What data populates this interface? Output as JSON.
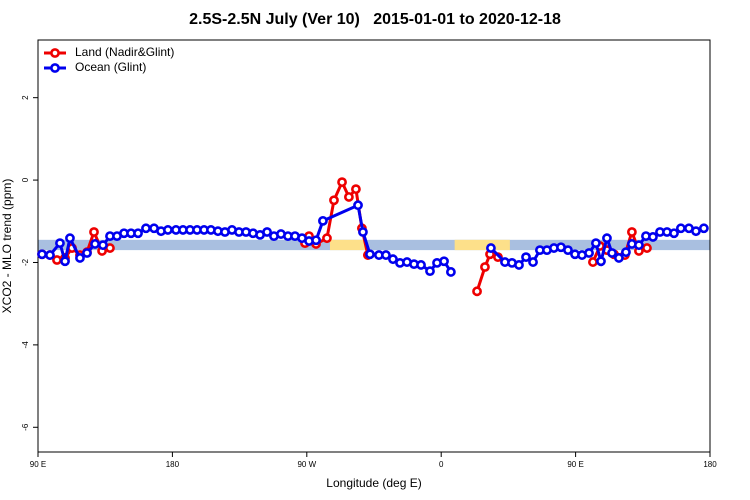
{
  "chart_data": {
    "type": "line",
    "title": "2.5S-2.5N July (Ver 10)   2015-01-01 to 2020-12-18",
    "x_label": "Longitude (deg E)",
    "y_label": "XCO2 - MLO trend (ppm)",
    "xlim": [
      90,
      540
    ],
    "ylim": [
      -6.6,
      3.4
    ],
    "xticks": [
      {
        "value": 90,
        "label": "90 E"
      },
      180,
      {
        "value": 270,
        "label": "90 W"
      },
      {
        "value": 360,
        "label": "0"
      },
      {
        "value": 450,
        "label": "90 E"
      },
      {
        "value": 540,
        "label": "180"
      }
    ],
    "yticks": [
      2,
      0,
      -2,
      -4,
      -6
    ],
    "legend": "top-left",
    "bands": [
      {
        "color": "#a9bfe0",
        "x": [
          90,
          540
        ],
        "y": [
          -1.7,
          -1.45
        ]
      },
      {
        "color": "#fde08a",
        "x": [
          285.5,
          309
        ],
        "y": [
          -1.7,
          -1.45
        ]
      },
      {
        "color": "#fde08a",
        "x": [
          369,
          406
        ],
        "y": [
          -1.7,
          -1.45
        ]
      }
    ],
    "series": [
      {
        "name": "Land (Nadir&Glint)",
        "color": "#ee0000",
        "x": [
          92.7,
          98.0,
          102.7,
          108.1,
          112.8,
          118.1,
          122.8,
          127.5,
          132.9,
          138.2,
          200,
          268.8,
          271.5,
          276.2,
          283.5,
          288.2,
          293.6,
          298.2,
          302.9,
          306.9,
          310.9,
          380,
          384.0,
          389.3,
          392.7,
          398.0,
          430,
          461.6,
          466.3,
          471.0,
          475.7,
          483.0,
          487.7,
          492.4,
          497.8
        ],
        "values": [
          -1.8,
          -1.82,
          -1.94,
          -1.89,
          -1.65,
          -1.82,
          -1.75,
          -1.26,
          -1.72,
          -1.65,
          null,
          -1.53,
          -1.36,
          -1.55,
          -1.41,
          -0.49,
          -0.05,
          -0.41,
          -0.22,
          -1.17,
          -1.82,
          null,
          -2.7,
          -2.11,
          -1.8,
          -1.87,
          null,
          -1.99,
          -1.6,
          -1.7,
          -1.8,
          -1.82,
          -1.26,
          -1.72,
          -1.65
        ]
      },
      {
        "name": "Ocean (Glint)",
        "color": "#0000ee",
        "x": [
          92.7,
          98.0,
          104.7,
          108.1,
          111.4,
          118.1,
          122.8,
          128.2,
          133.5,
          138.2,
          142.9,
          147.6,
          152.3,
          157.0,
          162.3,
          167.7,
          172.4,
          177.0,
          182.4,
          187.1,
          191.8,
          196.5,
          201.2,
          205.8,
          210.5,
          215.2,
          219.9,
          224.6,
          229.3,
          234.0,
          238.7,
          243.4,
          248.0,
          252.7,
          257.4,
          262.1,
          266.8,
          271.5,
          276.2,
          280.8,
          304.3,
          307.6,
          312.3,
          318.3,
          323.0,
          327.7,
          332.4,
          337.1,
          341.8,
          346.5,
          352.5,
          357.2,
          361.9,
          366.5,
          380,
          393.3,
          402.7,
          407.4,
          412.1,
          416.8,
          421.5,
          426.1,
          430.8,
          435.5,
          440.2,
          444.9,
          449.6,
          454.3,
          459.0,
          463.6,
          467.0,
          471.0,
          474.4,
          479.0,
          483.7,
          487.7,
          492.4,
          497.1,
          501.8,
          506.5,
          511.2,
          515.9,
          520.5,
          525.9,
          530.6,
          535.9
        ],
        "values": [
          -1.8,
          -1.82,
          -1.53,
          -1.97,
          -1.41,
          -1.89,
          -1.77,
          -1.55,
          -1.58,
          -1.36,
          -1.36,
          -1.29,
          -1.29,
          -1.29,
          -1.17,
          -1.17,
          -1.24,
          -1.21,
          -1.21,
          -1.21,
          -1.21,
          -1.21,
          -1.21,
          -1.21,
          -1.24,
          -1.26,
          -1.21,
          -1.26,
          -1.26,
          -1.29,
          -1.33,
          -1.26,
          -1.36,
          -1.31,
          -1.36,
          -1.36,
          -1.41,
          -1.48,
          -1.46,
          -0.99,
          -0.61,
          -1.26,
          -1.8,
          -1.82,
          -1.82,
          -1.92,
          -2.01,
          -1.99,
          -2.04,
          -2.06,
          -2.21,
          -2.01,
          -1.97,
          -2.23,
          null,
          -1.65,
          -1.99,
          -2.01,
          -2.06,
          -1.87,
          -1.99,
          -1.7,
          -1.7,
          -1.65,
          -1.63,
          -1.7,
          -1.8,
          -1.82,
          -1.77,
          -1.53,
          -1.97,
          -1.41,
          -1.77,
          -1.89,
          -1.75,
          -1.55,
          -1.58,
          -1.36,
          -1.38,
          -1.26,
          -1.26,
          -1.29,
          -1.17,
          -1.17,
          -1.24,
          -1.17
        ]
      }
    ]
  }
}
